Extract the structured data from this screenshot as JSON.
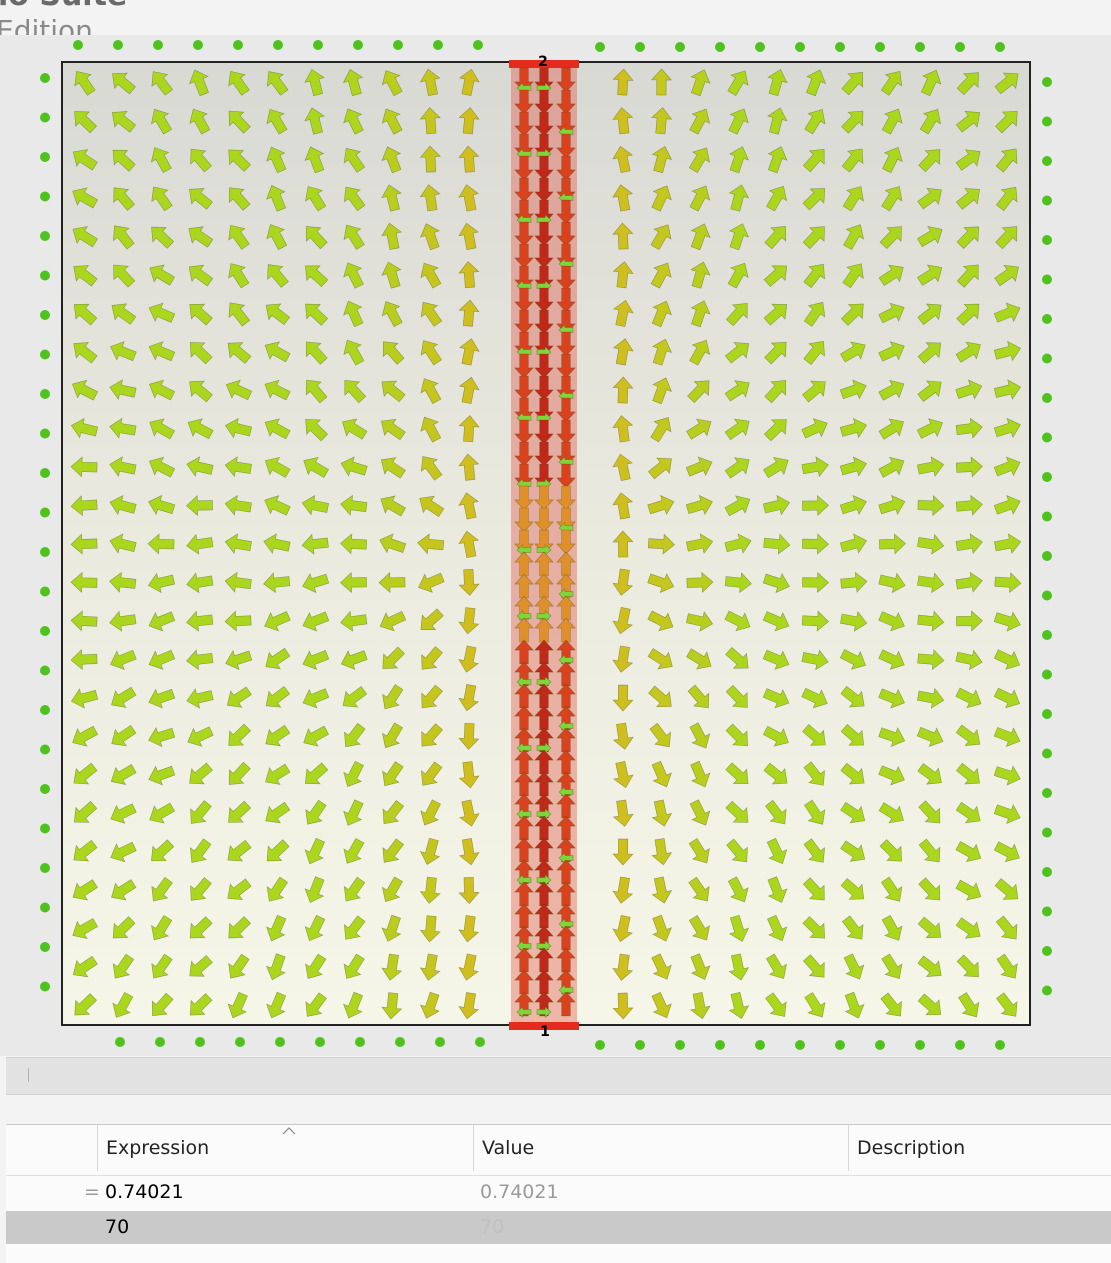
{
  "window": {
    "title": "io Suite",
    "subtitle": "Edition"
  },
  "ports": [
    {
      "label": "2"
    },
    {
      "label": "1"
    }
  ],
  "table": {
    "columns": [
      "Expression",
      "Value",
      "Description"
    ],
    "rows": [
      {
        "prefix": "=",
        "expression": "0.74021",
        "value": "0.74021"
      },
      {
        "expression": "70",
        "value": "70"
      }
    ]
  }
}
